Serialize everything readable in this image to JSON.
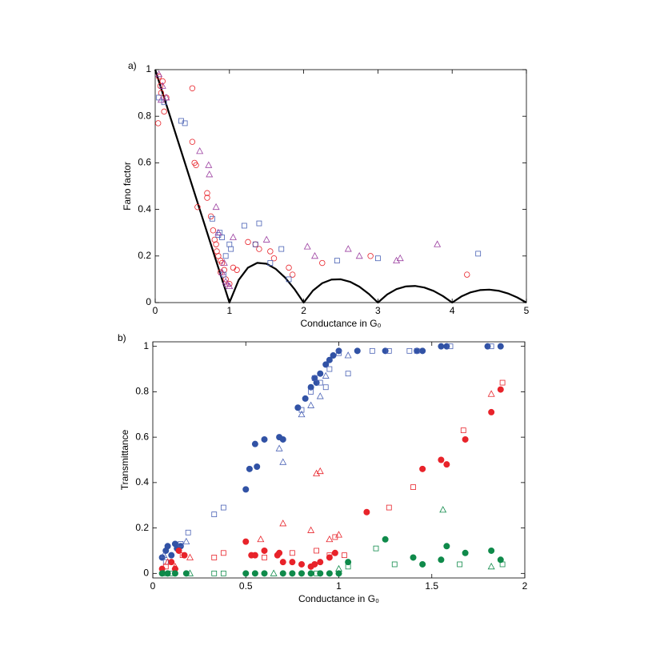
{
  "chart_data": [
    {
      "type": "scatter",
      "label": "a)",
      "x_label": "Conductance in G₀",
      "y_label": "Fano factor",
      "xlim": [
        0,
        5
      ],
      "ylim": [
        0,
        1
      ],
      "xticks": [
        0,
        1,
        2,
        3,
        4,
        5
      ],
      "yticks": [
        0,
        0.2,
        0.4,
        0.6,
        0.8,
        1
      ],
      "series": [
        {
          "marker": "line",
          "color": "#000000",
          "x": [
            0,
            0.125,
            0.25,
            0.375,
            0.5,
            0.625,
            0.75,
            0.875,
            1,
            1.125,
            1.25,
            1.375,
            1.5,
            1.625,
            1.75,
            1.875,
            2,
            2.125,
            2.25,
            2.375,
            2.5,
            2.625,
            2.75,
            2.875,
            3,
            3.125,
            3.25,
            3.375,
            3.5,
            3.625,
            3.75,
            3.875,
            4,
            4.125,
            4.25,
            4.375,
            4.5,
            4.625,
            4.75,
            4.875,
            5
          ],
          "values": [
            1,
            0.875,
            0.75,
            0.625,
            0.5,
            0.375,
            0.25,
            0.125,
            0,
            0.0972,
            0.15,
            0.1705,
            0.1667,
            0.1442,
            0.1071,
            0.0583,
            0,
            0.0515,
            0.0833,
            0.0987,
            0.1,
            0.0893,
            0.0682,
            0.038,
            0,
            0.035,
            0.0577,
            0.0694,
            0.0714,
            0.0647,
            0.05,
            0.0282,
            0,
            0.0265,
            0.0441,
            0.0536,
            0.0556,
            0.0507,
            0.0395,
            0.0224,
            0
          ]
        },
        {
          "marker": "circle",
          "filled": false,
          "color": "#e8232a",
          "x": [
            0.05,
            0.07,
            0.08,
            0.1,
            0.04,
            0.12,
            0.15,
            0.5,
            0.5,
            0.53,
            0.55,
            0.57,
            0.7,
            0.7,
            0.75,
            0.78,
            0.8,
            0.82,
            0.85,
            0.88,
            0.9,
            0.93,
            0.95,
            1.0,
            1.05,
            1.1,
            1.25,
            1.35,
            1.4,
            1.55,
            1.6,
            1.8,
            1.85,
            2.25,
            2.9,
            4.2,
            0.83,
            0.88
          ],
          "values": [
            0.97,
            0.93,
            0.9,
            0.95,
            0.77,
            0.82,
            0.88,
            0.92,
            0.69,
            0.6,
            0.59,
            0.41,
            0.47,
            0.45,
            0.37,
            0.31,
            0.27,
            0.25,
            0.2,
            0.18,
            0.17,
            0.14,
            0.1,
            0.08,
            0.15,
            0.14,
            0.26,
            0.25,
            0.23,
            0.22,
            0.19,
            0.15,
            0.12,
            0.17,
            0.2,
            0.12,
            0.22,
            0.13
          ]
        },
        {
          "marker": "square",
          "filled": false,
          "color": "#4a62b5",
          "x": [
            0.05,
            0.12,
            0.35,
            0.4,
            0.77,
            0.85,
            0.9,
            0.92,
            0.95,
            1.0,
            1.02,
            1.2,
            1.4,
            1.35,
            1.55,
            1.7,
            1.8,
            2.45,
            3.0,
            4.35,
            0.87
          ],
          "values": [
            0.88,
            0.86,
            0.78,
            0.77,
            0.36,
            0.29,
            0.28,
            0.12,
            0.2,
            0.25,
            0.23,
            0.33,
            0.34,
            0.25,
            0.17,
            0.23,
            0.1,
            0.18,
            0.19,
            0.21,
            0.3
          ]
        },
        {
          "marker": "triangle",
          "filled": false,
          "color": "#9b3fa0",
          "x": [
            0.05,
            0.08,
            0.1,
            0.15,
            0.6,
            0.72,
            0.73,
            0.82,
            0.85,
            0.9,
            0.95,
            1.0,
            1.05,
            1.5,
            2.05,
            2.15,
            2.6,
            2.75,
            3.25,
            3.3,
            3.8,
            0.93,
            0.97
          ],
          "values": [
            0.98,
            0.87,
            0.93,
            0.88,
            0.65,
            0.59,
            0.55,
            0.41,
            0.3,
            0.13,
            0.09,
            0.07,
            0.28,
            0.27,
            0.24,
            0.2,
            0.23,
            0.2,
            0.18,
            0.19,
            0.25,
            0.17,
            0.08
          ]
        }
      ]
    },
    {
      "type": "scatter",
      "label": "b)",
      "x_label": "Conductance in G₀",
      "y_label": "Transmittance",
      "xlim": [
        0,
        2
      ],
      "ylim": [
        -0.02,
        1.02
      ],
      "xticks": [
        0,
        0.5,
        1,
        1.5,
        2
      ],
      "yticks": [
        0,
        0.2,
        0.4,
        0.6,
        0.8,
        1
      ],
      "series": [
        {
          "marker": "circle",
          "filled": true,
          "color": "#3152a5",
          "x": [
            0.05,
            0.07,
            0.08,
            0.1,
            0.12,
            0.13,
            0.15,
            0.5,
            0.52,
            0.55,
            0.56,
            0.6,
            0.68,
            0.7,
            0.78,
            0.82,
            0.85,
            0.87,
            0.9,
            0.93,
            0.95,
            0.97,
            1.0,
            1.1,
            1.25,
            1.42,
            1.45,
            1.55,
            1.58,
            1.8,
            1.87,
            0.88
          ],
          "values": [
            0.07,
            0.1,
            0.12,
            0.08,
            0.13,
            0.11,
            0.12,
            0.37,
            0.46,
            0.57,
            0.47,
            0.59,
            0.6,
            0.59,
            0.73,
            0.77,
            0.82,
            0.86,
            0.88,
            0.92,
            0.94,
            0.96,
            0.98,
            0.98,
            0.98,
            0.98,
            0.98,
            1,
            1,
            1,
            1,
            0.84
          ]
        },
        {
          "marker": "square",
          "filled": false,
          "color": "#4a62b5",
          "x": [
            0.07,
            0.15,
            0.19,
            0.33,
            0.38,
            0.8,
            0.85,
            0.87,
            0.9,
            0.93,
            0.95,
            1.0,
            1.05,
            1.18,
            1.27,
            1.38,
            1.42,
            1.6,
            1.82
          ],
          "values": [
            0.05,
            0.13,
            0.18,
            0.26,
            0.29,
            0.72,
            0.8,
            0.86,
            0.84,
            0.82,
            0.9,
            0.97,
            0.88,
            0.98,
            0.98,
            0.98,
            0.98,
            1,
            1
          ]
        },
        {
          "marker": "triangle",
          "filled": false,
          "color": "#4a62b5",
          "x": [
            0.06,
            0.18,
            0.68,
            0.7,
            0.8,
            0.85,
            0.9,
            0.93,
            1.05
          ],
          "values": [
            0.08,
            0.14,
            0.55,
            0.49,
            0.7,
            0.74,
            0.78,
            0.87,
            0.96
          ]
        },
        {
          "marker": "circle",
          "filled": true,
          "color": "#e8232a",
          "x": [
            0.1,
            0.12,
            0.14,
            0.17,
            0.5,
            0.53,
            0.55,
            0.6,
            0.67,
            0.68,
            0.7,
            0.75,
            0.8,
            0.85,
            0.87,
            0.9,
            0.95,
            0.98,
            1.15,
            1.45,
            1.55,
            1.58,
            1.68,
            1.82,
            1.87,
            0.05
          ],
          "values": [
            0.05,
            0.02,
            0.1,
            0.08,
            0.14,
            0.08,
            0.08,
            0.1,
            0.08,
            0.09,
            0.05,
            0.05,
            0.04,
            0.03,
            0.04,
            0.05,
            0.07,
            0.09,
            0.27,
            0.46,
            0.5,
            0.48,
            0.59,
            0.71,
            0.81,
            0.02
          ]
        },
        {
          "marker": "square",
          "filled": false,
          "color": "#e8232a",
          "x": [
            0.07,
            0.16,
            0.33,
            0.38,
            0.6,
            0.75,
            0.88,
            0.95,
            0.98,
            1.03,
            1.27,
            1.4,
            1.67,
            1.88
          ],
          "values": [
            0.03,
            0.08,
            0.07,
            0.09,
            0.07,
            0.09,
            0.1,
            0.08,
            0.16,
            0.08,
            0.29,
            0.38,
            0.63,
            0.84
          ]
        },
        {
          "marker": "triangle",
          "filled": false,
          "color": "#e8232a",
          "x": [
            0.08,
            0.12,
            0.2,
            0.58,
            0.7,
            0.85,
            0.88,
            0.9,
            0.95,
            1.0,
            1.82
          ],
          "values": [
            0.05,
            0.03,
            0.07,
            0.15,
            0.22,
            0.19,
            0.44,
            0.45,
            0.15,
            0.17,
            0.79
          ]
        },
        {
          "marker": "circle",
          "filled": true,
          "color": "#0f8a4a",
          "x": [
            0.05,
            0.08,
            0.12,
            0.18,
            0.5,
            0.55,
            0.6,
            0.7,
            0.75,
            0.8,
            0.85,
            0.9,
            0.95,
            1.0,
            1.05,
            1.25,
            1.4,
            1.45,
            1.55,
            1.58,
            1.68,
            1.82,
            1.87
          ],
          "values": [
            0,
            0,
            0,
            0,
            0,
            0,
            0,
            0,
            0,
            0,
            0,
            0,
            0,
            0,
            0.05,
            0.15,
            0.07,
            0.04,
            0.06,
            0.12,
            0.09,
            0.1,
            0.06
          ]
        },
        {
          "marker": "square",
          "filled": false,
          "color": "#0f8a4a",
          "x": [
            0.1,
            0.33,
            0.38,
            0.88,
            1.05,
            1.2,
            1.3,
            1.65,
            1.88
          ],
          "values": [
            0,
            0,
            0,
            0,
            0.03,
            0.11,
            0.04,
            0.04,
            0.04
          ]
        },
        {
          "marker": "triangle",
          "filled": false,
          "color": "#0f8a4a",
          "x": [
            0.06,
            0.2,
            0.65,
            1.0,
            1.56,
            1.82
          ],
          "values": [
            0,
            0,
            0,
            0.02,
            0.28,
            0.03
          ]
        }
      ]
    }
  ]
}
